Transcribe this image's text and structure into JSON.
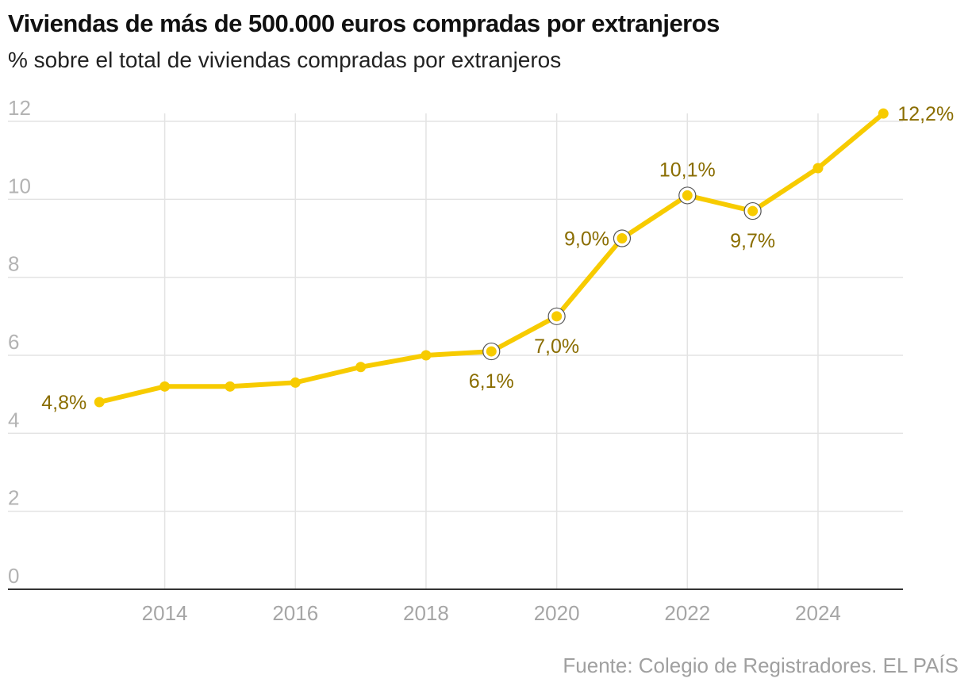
{
  "title": "Viviendas de más de 500.000 euros compradas por extranjeros",
  "subtitle": "% sobre el total de viviendas compradas por extranjeros",
  "source": "Fuente: Colegio de Registradores. EL PAÍS",
  "colors": {
    "line": "#f7cb00",
    "label": "#8a6d00",
    "grid": "#e3e3e3",
    "axis": "#333333"
  },
  "chart_data": {
    "type": "line",
    "title": "Viviendas de más de 500.000 euros compradas por extranjeros",
    "subtitle": "% sobre el total de viviendas compradas por extranjeros",
    "x": [
      2013,
      2014,
      2015,
      2016,
      2017,
      2018,
      2019,
      2020,
      2021,
      2022,
      2023,
      2024,
      2025
    ],
    "y": [
      4.8,
      5.2,
      5.2,
      5.3,
      5.7,
      6.0,
      6.1,
      7.0,
      9.0,
      10.1,
      9.7,
      10.8,
      12.2
    ],
    "ylim": [
      0,
      12
    ],
    "yticks": [
      0,
      2,
      4,
      6,
      8,
      10,
      12
    ],
    "xticks": [
      2014,
      2016,
      2018,
      2020,
      2022,
      2024
    ],
    "xlim": [
      2011.6,
      2025.3
    ],
    "grid": true,
    "legend": "none",
    "highlighted": [
      2019,
      2020,
      2021,
      2022,
      2023
    ],
    "labels": [
      {
        "x": 2013,
        "text": "4,8%",
        "position": "left"
      },
      {
        "x": 2019,
        "text": "6,1%",
        "position": "below"
      },
      {
        "x": 2020,
        "text": "7,0%",
        "position": "below"
      },
      {
        "x": 2021,
        "text": "9,0%",
        "position": "left"
      },
      {
        "x": 2022,
        "text": "10,1%",
        "position": "above"
      },
      {
        "x": 2023,
        "text": "9,7%",
        "position": "below"
      },
      {
        "x": 2025,
        "text": "12,2%",
        "position": "right"
      }
    ]
  }
}
